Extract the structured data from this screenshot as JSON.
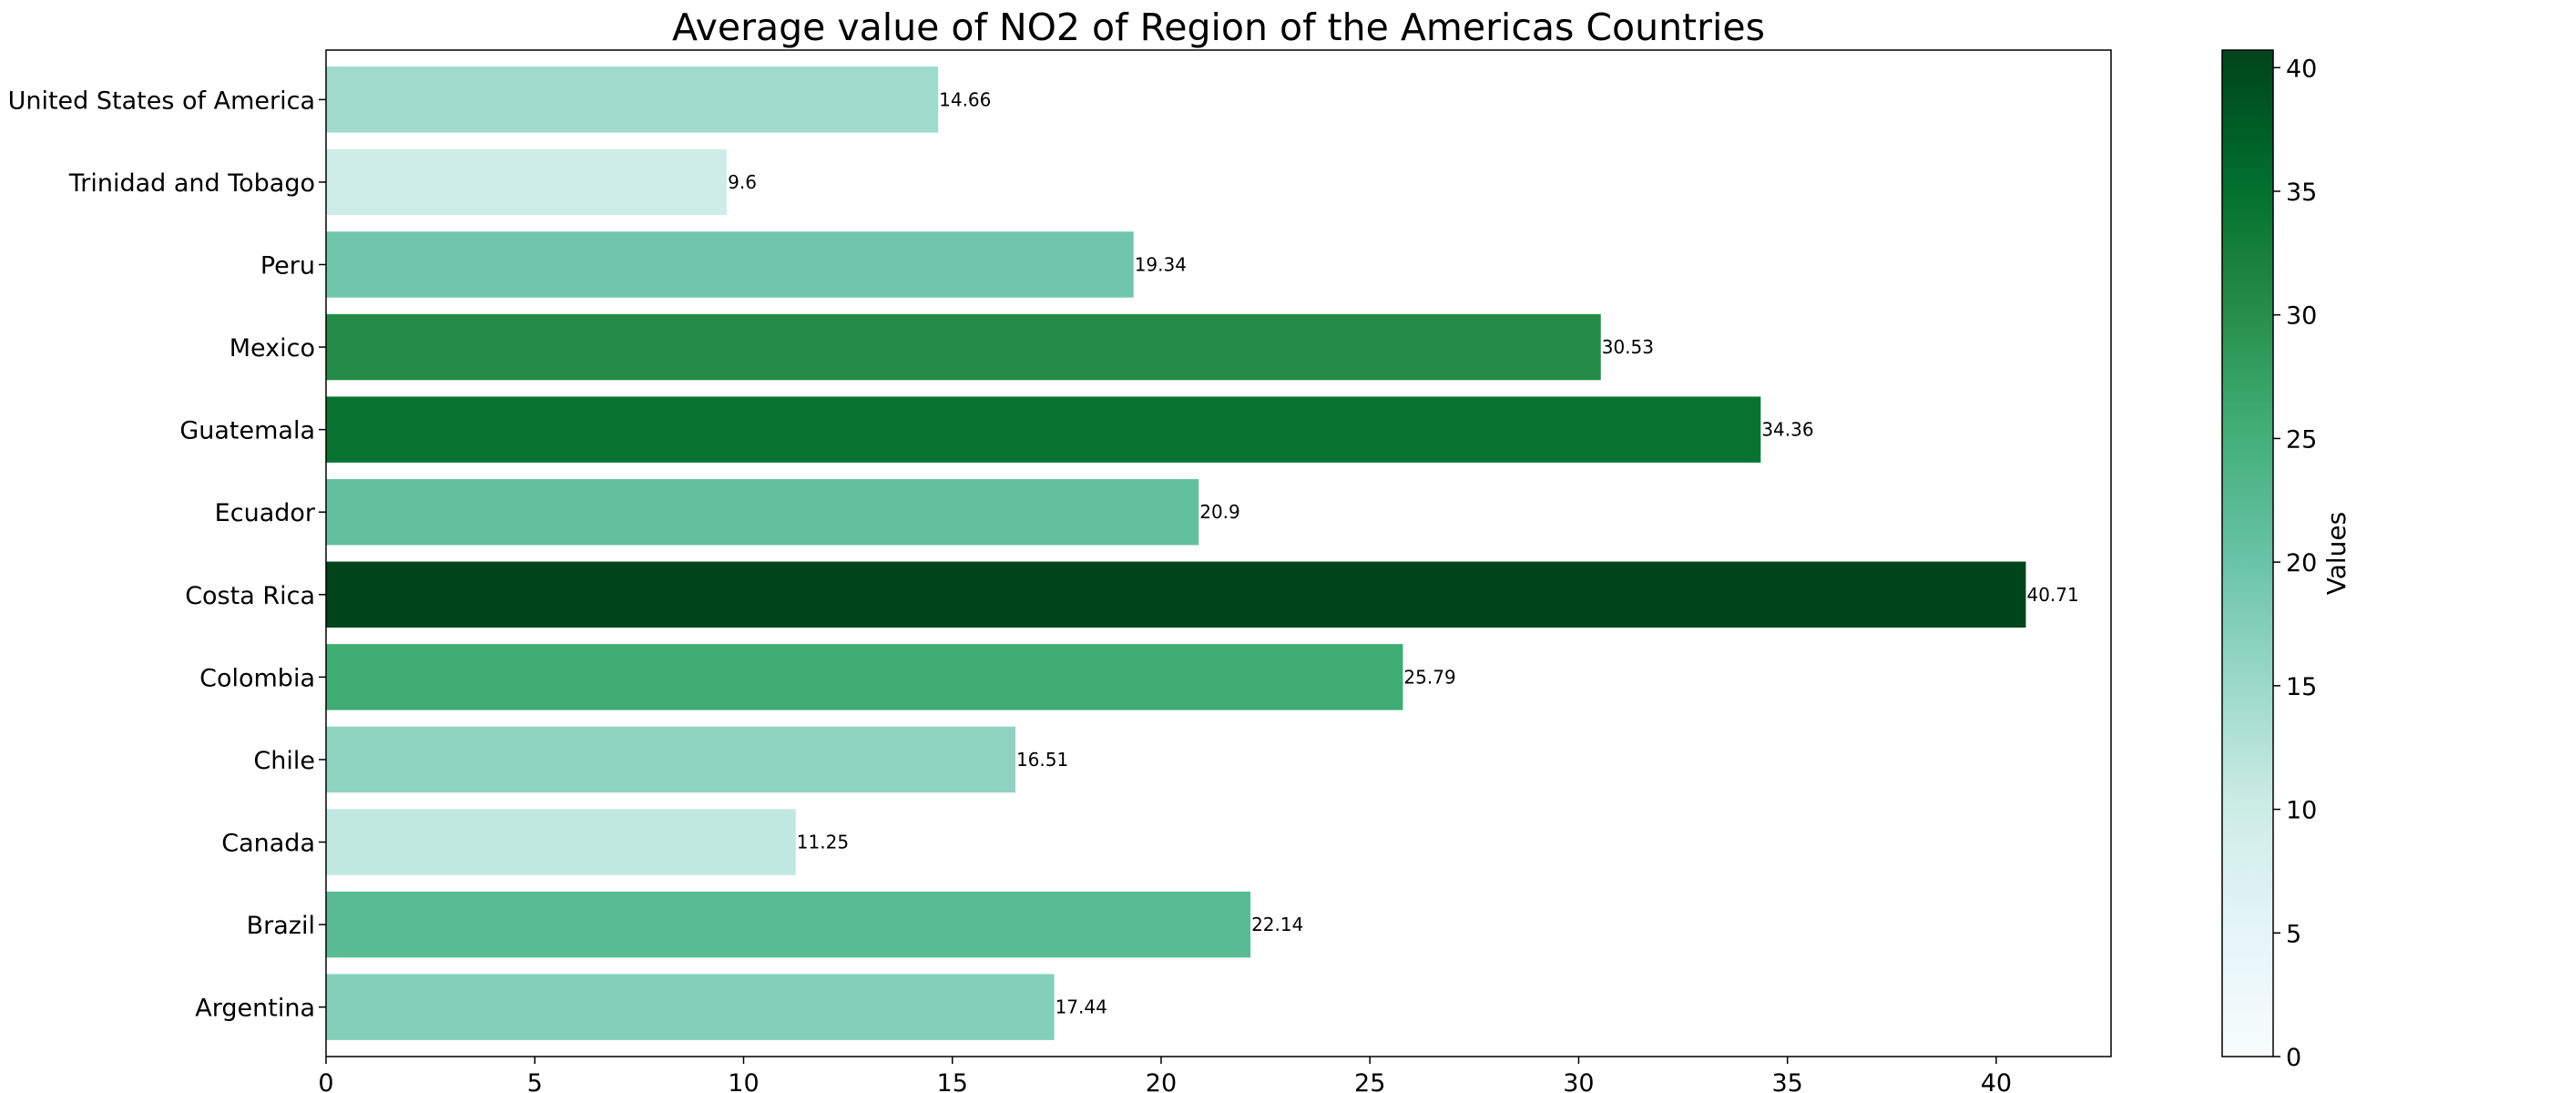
{
  "chart_data": {
    "type": "bar",
    "orientation": "horizontal",
    "title": "Average value of NO2 of Region of the Americas Countries",
    "xlabel": "",
    "ylabel": "",
    "categories": [
      "United States of America",
      "Trinidad and Tobago",
      "Peru",
      "Mexico",
      "Guatemala",
      "Ecuador",
      "Costa Rica",
      "Colombia",
      "Chile",
      "Canada",
      "Brazil",
      "Argentina"
    ],
    "values": [
      14.66,
      9.6,
      19.34,
      30.53,
      34.36,
      20.9,
      40.71,
      25.79,
      16.51,
      11.25,
      22.14,
      17.44
    ],
    "value_labels": [
      "14.66",
      "9.6",
      "19.34",
      "30.53",
      "34.36",
      "20.9",
      "40.71",
      "25.79",
      "16.51",
      "11.25",
      "22.14",
      "17.44"
    ],
    "xlim": [
      0,
      42.75
    ],
    "xticks": [
      0,
      5,
      10,
      15,
      20,
      25,
      30,
      35,
      40
    ],
    "grid": false,
    "legend": "none",
    "colormap": "Greens",
    "colorbar": {
      "label": "Values",
      "range": [
        0,
        40.71
      ],
      "ticks": [
        0,
        5,
        10,
        15,
        20,
        25,
        30,
        35,
        40
      ],
      "colors": [
        "#f7fcfd",
        "#e5f5f9",
        "#ccece6",
        "#99d8c9",
        "#66c2a4",
        "#41ae76",
        "#238b45",
        "#006d2c",
        "#00441b"
      ]
    }
  }
}
